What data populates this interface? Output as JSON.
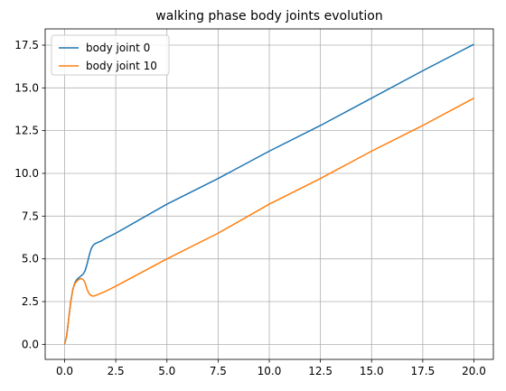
{
  "chart_data": {
    "type": "line",
    "title": "walking phase body joints evolution",
    "xlabel": "",
    "ylabel": "",
    "xlim": [
      -0.95,
      20.95
    ],
    "ylim": [
      -0.88,
      18.45
    ],
    "xticks": [
      0,
      2.5,
      5,
      7.5,
      10,
      12.5,
      15,
      17.5,
      20
    ],
    "xtick_labels": [
      "0.0",
      "2.5",
      "5.0",
      "7.5",
      "10.0",
      "12.5",
      "15.0",
      "17.5",
      "20.0"
    ],
    "yticks": [
      0,
      2.5,
      5,
      7.5,
      10,
      12.5,
      15,
      17.5
    ],
    "ytick_labels": [
      "0.0",
      "2.5",
      "5.0",
      "7.5",
      "10.0",
      "12.5",
      "15.0",
      "17.5"
    ],
    "grid": true,
    "legend": "top-left",
    "series": [
      {
        "name": "body joint 0",
        "color": "#1f77b4",
        "x": [
          0,
          0.1,
          0.2,
          0.3,
          0.4,
          0.5,
          0.6,
          0.7,
          0.8,
          0.9,
          1.0,
          1.1,
          1.2,
          1.3,
          1.4,
          1.5,
          1.6,
          1.7,
          1.8,
          2.0,
          2.5,
          5,
          7.5,
          10,
          12.5,
          15,
          17.5,
          20
        ],
        "y": [
          0,
          0.5,
          1.5,
          2.5,
          3.2,
          3.6,
          3.8,
          3.9,
          4.0,
          4.1,
          4.3,
          4.7,
          5.2,
          5.6,
          5.8,
          5.9,
          5.95,
          6.0,
          6.05,
          6.2,
          6.5,
          8.2,
          9.7,
          11.3,
          12.8,
          14.4,
          16.0,
          17.55
        ]
      },
      {
        "name": "body joint 10",
        "color": "#ff7f0e",
        "x": [
          0,
          0.1,
          0.2,
          0.3,
          0.4,
          0.5,
          0.6,
          0.7,
          0.8,
          0.9,
          1.0,
          1.1,
          1.2,
          1.3,
          1.4,
          1.5,
          1.6,
          1.8,
          2.0,
          2.5,
          5,
          7.5,
          10,
          12.5,
          15,
          17.5,
          20
        ],
        "y": [
          0,
          0.5,
          1.5,
          2.5,
          3.2,
          3.55,
          3.7,
          3.8,
          3.85,
          3.8,
          3.6,
          3.2,
          2.95,
          2.85,
          2.82,
          2.85,
          2.9,
          3.0,
          3.1,
          3.4,
          5.0,
          6.5,
          8.2,
          9.7,
          11.3,
          12.8,
          14.4
        ]
      }
    ]
  }
}
